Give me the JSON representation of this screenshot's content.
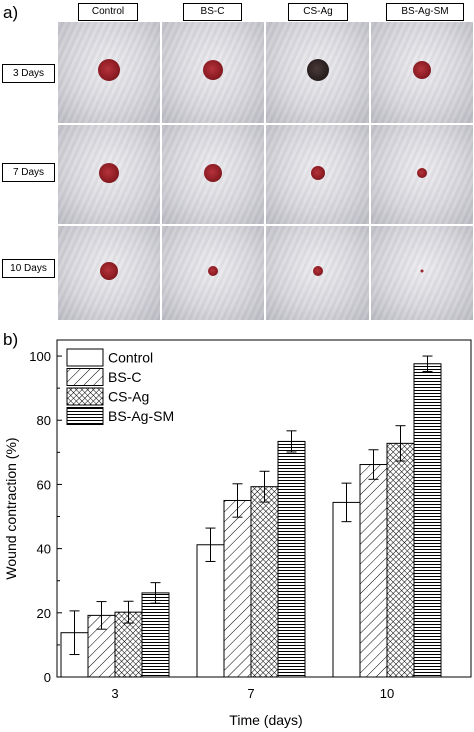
{
  "panel_a": {
    "label": "a)",
    "columns": [
      "Control",
      "BS-C",
      "CS-Ag",
      "BS-Ag-SM"
    ],
    "rows": [
      "3 Days",
      "7 Days",
      "10 Days"
    ],
    "wound_size_px": [
      [
        22,
        20,
        22,
        18
      ],
      [
        20,
        18,
        14,
        10
      ],
      [
        18,
        10,
        10,
        3
      ]
    ]
  },
  "panel_b": {
    "label": "b)",
    "chart_data": {
      "type": "bar",
      "xlabel": "Time (days)",
      "ylabel": "Wound contraction (%)",
      "categories": [
        "3",
        "7",
        "10"
      ],
      "ylim": [
        0,
        105
      ],
      "yticks": [
        0,
        20,
        40,
        60,
        80,
        100
      ],
      "grid": false,
      "legend_position": "top-left",
      "series": [
        {
          "name": "Control",
          "pattern": "none",
          "values": [
            13.8,
            41.2,
            54.4
          ],
          "errors": [
            6.8,
            5.2,
            6.0
          ]
        },
        {
          "name": "BS-C",
          "pattern": "diagonal",
          "values": [
            19.2,
            55.0,
            66.2
          ],
          "errors": [
            4.3,
            5.2,
            4.6
          ]
        },
        {
          "name": "CS-Ag",
          "pattern": "crosshatch",
          "values": [
            20.2,
            59.3,
            72.8
          ],
          "errors": [
            3.4,
            4.8,
            5.5
          ]
        },
        {
          "name": "BS-Ag-SM",
          "pattern": "horizontal",
          "values": [
            26.2,
            73.4,
            97.6
          ],
          "errors": [
            3.2,
            3.3,
            2.4
          ]
        }
      ]
    }
  }
}
